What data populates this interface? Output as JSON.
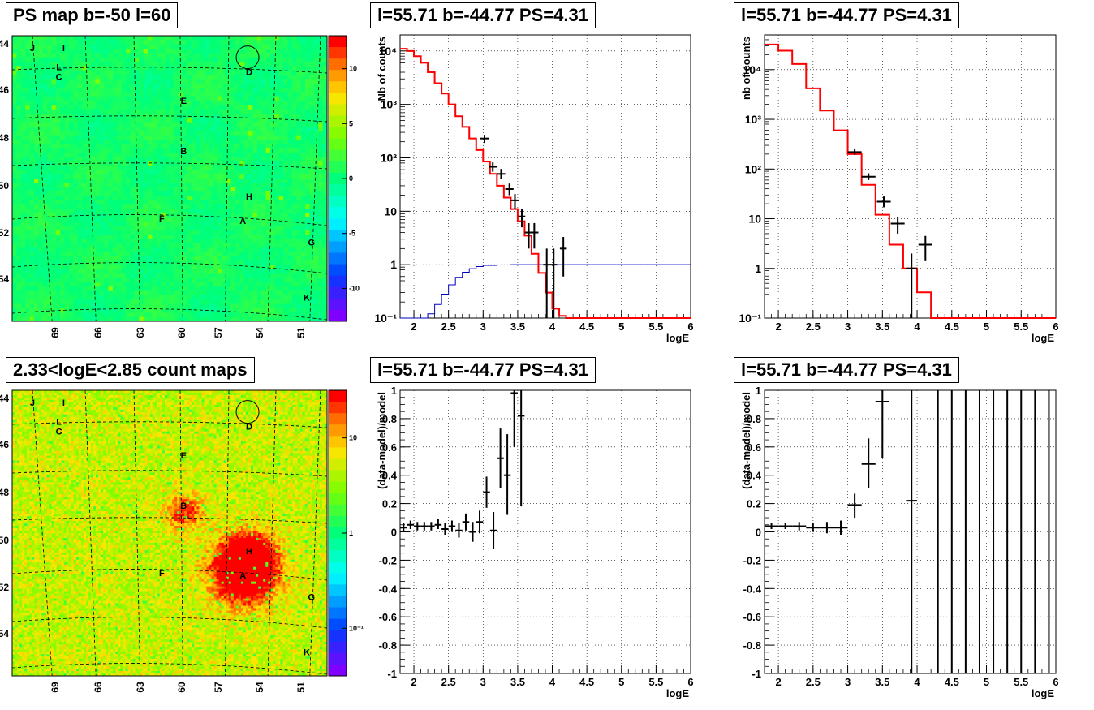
{
  "panel_titles": {
    "ps_map": "PS map b=-50 l=60",
    "count_map": "2.33<logE<2.85 count maps",
    "spec_a": "l=55.71 b=-44.77 PS=4.31",
    "spec_b": "l=55.71 b=-44.77 PS=4.31",
    "resid_a": "l=55.71 b=-44.77 PS=4.31",
    "resid_b": "l=55.71 b=-44.77 PS=4.31"
  },
  "colors": {
    "model": "#ff0000",
    "exposure": "#0000c0",
    "data": "#000000"
  },
  "chart_data": [
    {
      "id": "ps_map",
      "type": "heatmap",
      "title": "PS map b=-50 l=60",
      "yticks": [
        "-44",
        "-46",
        "-48",
        "-50",
        "-52",
        "-54"
      ],
      "xticks": [
        "69",
        "66",
        "63",
        "60",
        "57",
        "54",
        "51"
      ],
      "colorbar_ticks": [
        "10",
        "5",
        "0",
        "-5",
        "-10"
      ],
      "colorbar_range": [
        -13,
        13
      ],
      "sources": [
        {
          "label": "J",
          "l": 68.5,
          "b": -44.2
        },
        {
          "label": "I",
          "l": 66.5,
          "b": -44.2
        },
        {
          "label": "L",
          "l": 66.8,
          "b": -45.0
        },
        {
          "label": "C",
          "l": 66.8,
          "b": -45.4
        },
        {
          "label": "D",
          "l": 54.6,
          "b": -45.2
        },
        {
          "label": "E",
          "l": 58.8,
          "b": -46.4
        },
        {
          "label": "B",
          "l": 58.8,
          "b": -48.5
        },
        {
          "label": "H",
          "l": 54.6,
          "b": -50.4
        },
        {
          "label": "F",
          "l": 60.2,
          "b": -51.3
        },
        {
          "label": "A",
          "l": 55.0,
          "b": -51.4
        },
        {
          "label": "G",
          "l": 50.6,
          "b": -52.3
        },
        {
          "label": "K",
          "l": 50.9,
          "b": -54.6
        }
      ]
    },
    {
      "id": "count_map",
      "type": "heatmap",
      "title": "2.33<logE<2.85 count maps",
      "yticks": [
        "-44",
        "-46",
        "-48",
        "-50",
        "-52",
        "-54"
      ],
      "xticks": [
        "69",
        "66",
        "63",
        "60",
        "57",
        "54",
        "51"
      ],
      "colorbar_ticks": [
        "10",
        "1",
        "10⁻¹"
      ],
      "colorbar_log_range": [
        -1.5,
        1.5
      ],
      "sources": [
        {
          "label": "J",
          "l": 68.5,
          "b": -44.2
        },
        {
          "label": "I",
          "l": 66.5,
          "b": -44.2
        },
        {
          "label": "L",
          "l": 66.8,
          "b": -45.0
        },
        {
          "label": "C",
          "l": 66.8,
          "b": -45.4
        },
        {
          "label": "D",
          "l": 54.6,
          "b": -45.2
        },
        {
          "label": "E",
          "l": 58.8,
          "b": -46.4
        },
        {
          "label": "B",
          "l": 58.8,
          "b": -48.5
        },
        {
          "label": "H",
          "l": 54.6,
          "b": -50.4
        },
        {
          "label": "F",
          "l": 60.2,
          "b": -51.3
        },
        {
          "label": "A",
          "l": 55.0,
          "b": -51.4
        },
        {
          "label": "G",
          "l": 50.6,
          "b": -52.3
        },
        {
          "label": "K",
          "l": 50.9,
          "b": -54.6
        }
      ]
    },
    {
      "id": "spec_a",
      "type": "line",
      "log_y": true,
      "title": "l=55.71 b=-44.77 PS=4.31",
      "xlabel": "logE",
      "ylabel": "Nb of counts",
      "xlim": [
        1.8,
        6
      ],
      "ylim": [
        0.1,
        20000
      ],
      "grid": true,
      "xticks": [
        "2",
        "2.5",
        "3",
        "3.5",
        "4",
        "4.5",
        "5",
        "5.5",
        "6"
      ],
      "yticks": [
        {
          "v": 0.1,
          "t": "10⁻¹"
        },
        {
          "v": 1,
          "t": "1"
        },
        {
          "v": 10,
          "t": "10"
        },
        {
          "v": 100,
          "t": "10²"
        },
        {
          "v": 1000,
          "t": "10³"
        },
        {
          "v": 10000,
          "t": "10⁴"
        }
      ],
      "model_step": {
        "edges": [
          1.8,
          1.9,
          2.0,
          2.1,
          2.2,
          2.3,
          2.4,
          2.5,
          2.6,
          2.7,
          2.8,
          2.9,
          3.0,
          3.1,
          3.2,
          3.3,
          3.4,
          3.5,
          3.6,
          3.7,
          3.8,
          3.9,
          4.0,
          4.1,
          4.2,
          6.0
        ],
        "values": [
          11000,
          10000,
          8000,
          6000,
          4000,
          2500,
          1600,
          1000,
          600,
          380,
          230,
          140,
          85,
          50,
          30,
          18,
          11,
          6.5,
          3.5,
          1.6,
          0.7,
          0.3,
          0.15,
          0.11,
          0.09
        ]
      },
      "exposure_step": {
        "edges": [
          1.8,
          2.1,
          2.2,
          2.3,
          2.4,
          2.5,
          2.6,
          2.7,
          2.8,
          2.9,
          3.0,
          3.2,
          3.4,
          6.0
        ],
        "values": [
          0.09,
          0.1,
          0.12,
          0.18,
          0.28,
          0.42,
          0.58,
          0.72,
          0.84,
          0.92,
          0.97,
          0.99,
          1.0
        ]
      },
      "points": [
        {
          "x": 3.02,
          "y": 230,
          "dx": 0.06,
          "lo": 190,
          "hi": 270
        },
        {
          "x": 3.14,
          "y": 68,
          "dx": 0.06,
          "lo": 55,
          "hi": 82
        },
        {
          "x": 3.26,
          "y": 50,
          "dx": 0.06,
          "lo": 40,
          "hi": 62
        },
        {
          "x": 3.38,
          "y": 26,
          "dx": 0.06,
          "lo": 20,
          "hi": 33
        },
        {
          "x": 3.46,
          "y": 16,
          "dx": 0.06,
          "lo": 11,
          "hi": 21
        },
        {
          "x": 3.56,
          "y": 8,
          "dx": 0.05,
          "lo": 5,
          "hi": 11
        },
        {
          "x": 3.66,
          "y": 4,
          "dx": 0.06,
          "lo": 2,
          "hi": 6
        },
        {
          "x": 3.74,
          "y": 4,
          "dx": 0.06,
          "lo": 2,
          "hi": 6
        },
        {
          "x": 3.92,
          "y": 1,
          "dx": 0.05,
          "lo": 0.1,
          "hi": 2
        },
        {
          "x": 4.02,
          "y": 1,
          "dx": 0.05,
          "lo": 0.1,
          "hi": 2
        },
        {
          "x": 4.16,
          "y": 2,
          "dx": 0.05,
          "lo": 0.6,
          "hi": 3.3
        }
      ]
    },
    {
      "id": "spec_b",
      "type": "line",
      "log_y": true,
      "title": "l=55.71 b=-44.77 PS=4.31",
      "xlabel": "logE",
      "ylabel": "nb of counts",
      "xlim": [
        1.8,
        6
      ],
      "ylim": [
        0.1,
        50000
      ],
      "grid": true,
      "xticks": [
        "2",
        "2.5",
        "3",
        "3.5",
        "4",
        "4.5",
        "5",
        "5.5",
        "6"
      ],
      "yticks": [
        {
          "v": 0.1,
          "t": "10⁻¹"
        },
        {
          "v": 1,
          "t": "1"
        },
        {
          "v": 10,
          "t": "10"
        },
        {
          "v": 100,
          "t": "10²"
        },
        {
          "v": 1000,
          "t": "10³"
        },
        {
          "v": 10000,
          "t": "10⁴"
        }
      ],
      "model_step": {
        "edges": [
          1.8,
          2.0,
          2.2,
          2.4,
          2.6,
          2.8,
          3.0,
          3.2,
          3.4,
          3.6,
          3.8,
          4.0,
          4.2,
          6.0
        ],
        "values": [
          32000,
          24000,
          13000,
          4200,
          1500,
          600,
          200,
          48,
          12,
          3,
          1,
          0.33,
          0.1
        ]
      },
      "exposure_step": null,
      "points": [
        {
          "x": 3.1,
          "y": 220,
          "dx": 0.1,
          "lo": 195,
          "hi": 250
        },
        {
          "x": 3.3,
          "y": 70,
          "dx": 0.1,
          "lo": 60,
          "hi": 82
        },
        {
          "x": 3.52,
          "y": 22,
          "dx": 0.1,
          "lo": 17,
          "hi": 28
        },
        {
          "x": 3.72,
          "y": 8,
          "dx": 0.1,
          "lo": 5,
          "hi": 11
        },
        {
          "x": 3.92,
          "y": 1,
          "dx": 0.08,
          "lo": 0.1,
          "hi": 2
        },
        {
          "x": 4.12,
          "y": 3,
          "dx": 0.1,
          "lo": 1.4,
          "hi": 4.5
        }
      ]
    },
    {
      "id": "resid_a",
      "type": "scatter",
      "title": "l=55.71 b=-44.77 PS=4.31",
      "xlabel": "logE",
      "ylabel": "(data-model)/model",
      "xlim": [
        1.8,
        6
      ],
      "ylim": [
        -1,
        1
      ],
      "grid": true,
      "xticks": [
        "2",
        "2.5",
        "3",
        "3.5",
        "4",
        "4.5",
        "5",
        "5.5",
        "6"
      ],
      "yticks": [
        "-1",
        "-0.8",
        "-0.6",
        "-0.4",
        "-0.2",
        "0",
        "0.2",
        "0.4",
        "0.6",
        "0.8",
        "1"
      ],
      "points": [
        {
          "x": 1.85,
          "y": 0.03,
          "dx": 0.05,
          "lo": 0.0,
          "hi": 0.06
        },
        {
          "x": 1.95,
          "y": 0.05,
          "dx": 0.05,
          "lo": 0.02,
          "hi": 0.08
        },
        {
          "x": 2.05,
          "y": 0.04,
          "dx": 0.05,
          "lo": 0.01,
          "hi": 0.07
        },
        {
          "x": 2.15,
          "y": 0.04,
          "dx": 0.05,
          "lo": 0.01,
          "hi": 0.07
        },
        {
          "x": 2.25,
          "y": 0.04,
          "dx": 0.05,
          "lo": 0.01,
          "hi": 0.07
        },
        {
          "x": 2.35,
          "y": 0.05,
          "dx": 0.05,
          "lo": 0.02,
          "hi": 0.09
        },
        {
          "x": 2.45,
          "y": 0.02,
          "dx": 0.05,
          "lo": -0.02,
          "hi": 0.06
        },
        {
          "x": 2.55,
          "y": 0.04,
          "dx": 0.05,
          "lo": 0.0,
          "hi": 0.08
        },
        {
          "x": 2.65,
          "y": 0.01,
          "dx": 0.05,
          "lo": -0.04,
          "hi": 0.06
        },
        {
          "x": 2.75,
          "y": 0.07,
          "dx": 0.05,
          "lo": 0.01,
          "hi": 0.13
        },
        {
          "x": 2.85,
          "y": 0.0,
          "dx": 0.05,
          "lo": -0.07,
          "hi": 0.07
        },
        {
          "x": 2.95,
          "y": 0.07,
          "dx": 0.05,
          "lo": -0.01,
          "hi": 0.15
        },
        {
          "x": 3.05,
          "y": 0.28,
          "dx": 0.05,
          "lo": 0.17,
          "hi": 0.39
        },
        {
          "x": 3.15,
          "y": 0.01,
          "dx": 0.05,
          "lo": -0.12,
          "hi": 0.14
        },
        {
          "x": 3.25,
          "y": 0.52,
          "dx": 0.05,
          "lo": 0.31,
          "hi": 0.73
        },
        {
          "x": 3.35,
          "y": 0.4,
          "dx": 0.05,
          "lo": 0.12,
          "hi": 0.69
        },
        {
          "x": 3.45,
          "y": 0.98,
          "dx": 0.05,
          "lo": 0.6,
          "hi": 1.0
        },
        {
          "x": 3.55,
          "y": 0.82,
          "dx": 0.05,
          "lo": 0.18,
          "hi": 1.0
        }
      ]
    },
    {
      "id": "resid_b",
      "type": "scatter",
      "title": "l=55.71 b=-44.77 PS=4.31",
      "xlabel": "logE",
      "ylabel": "(data-model)/model",
      "xlim": [
        1.8,
        6
      ],
      "ylim": [
        -1,
        1
      ],
      "grid": true,
      "xticks": [
        "2",
        "2.5",
        "3",
        "3.5",
        "4",
        "4.5",
        "5",
        "5.5",
        "6"
      ],
      "yticks": [
        "-1",
        "-0.8",
        "-0.6",
        "-0.4",
        "-0.2",
        "0",
        "0.2",
        "0.4",
        "0.6",
        "0.8",
        "1"
      ],
      "points": [
        {
          "x": 1.9,
          "y": 0.04,
          "dx": 0.1,
          "lo": 0.02,
          "hi": 0.06
        },
        {
          "x": 2.1,
          "y": 0.04,
          "dx": 0.1,
          "lo": 0.02,
          "hi": 0.06
        },
        {
          "x": 2.3,
          "y": 0.04,
          "dx": 0.1,
          "lo": 0.01,
          "hi": 0.07
        },
        {
          "x": 2.5,
          "y": 0.03,
          "dx": 0.1,
          "lo": 0.0,
          "hi": 0.06
        },
        {
          "x": 2.7,
          "y": 0.03,
          "dx": 0.1,
          "lo": -0.01,
          "hi": 0.07
        },
        {
          "x": 2.9,
          "y": 0.03,
          "dx": 0.1,
          "lo": -0.02,
          "hi": 0.08
        },
        {
          "x": 3.1,
          "y": 0.19,
          "dx": 0.1,
          "lo": 0.1,
          "hi": 0.27
        },
        {
          "x": 3.3,
          "y": 0.48,
          "dx": 0.1,
          "lo": 0.31,
          "hi": 0.66
        },
        {
          "x": 3.5,
          "y": 0.92,
          "dx": 0.1,
          "lo": 0.52,
          "hi": 1.0
        },
        {
          "x": 3.92,
          "y": 0.22,
          "dx": 0.08,
          "lo": -1,
          "hi": 1
        },
        {
          "x": 4.3,
          "y": null,
          "dx": 0,
          "lo": -1,
          "hi": 1
        },
        {
          "x": 4.5,
          "y": null,
          "dx": 0,
          "lo": -1,
          "hi": 1
        },
        {
          "x": 4.7,
          "y": null,
          "dx": 0,
          "lo": -1,
          "hi": 1
        },
        {
          "x": 4.9,
          "y": null,
          "dx": 0,
          "lo": -1,
          "hi": 1
        },
        {
          "x": 5.1,
          "y": null,
          "dx": 0,
          "lo": -1,
          "hi": 1
        },
        {
          "x": 5.3,
          "y": null,
          "dx": 0,
          "lo": -1,
          "hi": 1
        },
        {
          "x": 5.5,
          "y": null,
          "dx": 0,
          "lo": -1,
          "hi": 1
        },
        {
          "x": 5.7,
          "y": null,
          "dx": 0,
          "lo": -1,
          "hi": 1
        },
        {
          "x": 5.9,
          "y": null,
          "dx": 0,
          "lo": -1,
          "hi": 1
        }
      ]
    }
  ]
}
